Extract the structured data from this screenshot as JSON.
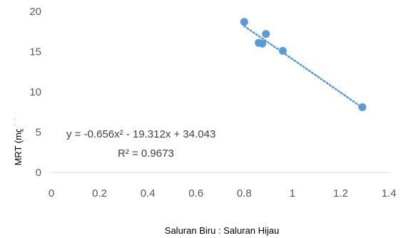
{
  "chart_data": {
    "type": "scatter",
    "title": "",
    "xlabel": "Saluran Biru : Saluran Hijau",
    "ylabel": "MRT (mg/L)",
    "xlim": [
      0,
      1.4
    ],
    "ylim": [
      0,
      20
    ],
    "x_ticks": [
      "0",
      "0.2",
      "0.4",
      "0.6",
      "0.8",
      "1",
      "1.2",
      "1.4"
    ],
    "y_ticks": [
      "0",
      "5",
      "10",
      "15",
      "20"
    ],
    "grid": false,
    "series": [
      {
        "points": [
          {
            "x": 0.8,
            "y": 18.7
          },
          {
            "x": 0.89,
            "y": 17.2
          },
          {
            "x": 0.86,
            "y": 16.1
          },
          {
            "x": 0.875,
            "y": 16.0
          },
          {
            "x": 0.96,
            "y": 15.1
          },
          {
            "x": 1.29,
            "y": 8.1
          }
        ],
        "color": "#5b9bd5"
      }
    ],
    "trendline": {
      "type": "polynomial",
      "coefficients": {
        "a": -0.656,
        "b": -19.312,
        "c": 34.043
      },
      "style": "dotted",
      "color": "#5b9bd5",
      "x_range": [
        0.8,
        1.29
      ]
    },
    "equation_text": "y = -0.656x² - 19.312x + 34.043",
    "r2_text": "R² = 0.9673"
  }
}
